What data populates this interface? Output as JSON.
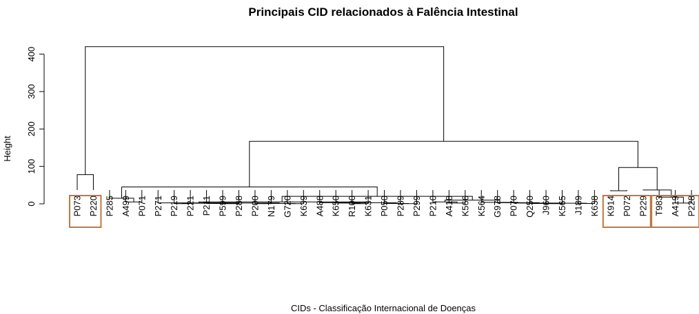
{
  "chart_data": {
    "type": "dendrogram",
    "title": "Principais CID relacionados à Falência Intestinal",
    "xlabel": "CIDs - Classificação Internacional de Doenças",
    "ylabel": "Height",
    "ylim": [
      0,
      420
    ],
    "yticks": [
      0,
      100,
      200,
      300,
      400
    ],
    "leaves": [
      "P073",
      "P220",
      "P285",
      "A499",
      "P071",
      "P271",
      "P219",
      "P221",
      "P211",
      "P599",
      "P288",
      "P200",
      "N179",
      "G720",
      "K639",
      "A488",
      "K650",
      "R100",
      "K631",
      "P050",
      "P289",
      "P299",
      "P210",
      "A418",
      "K566",
      "K564",
      "G978",
      "P070",
      "Q250",
      "J960",
      "K565",
      "J189",
      "K638",
      "K914",
      "P072",
      "P229",
      "T983",
      "A419",
      "P228"
    ],
    "merges": [
      {
        "a": [
          "leaf",
          "P073"
        ],
        "b": [
          "leaf",
          "P220"
        ],
        "height": 78
      },
      {
        "a": [
          "leaf",
          "A499"
        ],
        "b": [
          "leaf",
          "P071"
        ],
        "height": 5
      },
      {
        "a": [
          "leaf",
          "P285"
        ],
        "b": [
          "node",
          1
        ],
        "height": 15
      },
      {
        "a": [
          "leaf",
          "P219"
        ],
        "b": [
          "leaf",
          "P221"
        ],
        "height": 0.5
      },
      {
        "a": [
          "leaf",
          "P599"
        ],
        "b": [
          "leaf",
          "P288"
        ],
        "height": 0.5
      },
      {
        "a": [
          "leaf",
          "P211"
        ],
        "b": [
          "node",
          4
        ],
        "height": 1
      },
      {
        "a": [
          "node",
          3
        ],
        "b": [
          "node",
          5
        ],
        "height": 1.5
      },
      {
        "a": [
          "leaf",
          "P200"
        ],
        "b": [
          "leaf",
          "N179"
        ],
        "height": 0.5
      },
      {
        "a": [
          "leaf",
          "G720"
        ],
        "b": [
          "leaf",
          "K639"
        ],
        "height": 0.5
      },
      {
        "a": [
          "node",
          7
        ],
        "b": [
          "node",
          8
        ],
        "height": 1
      },
      {
        "a": [
          "node",
          6
        ],
        "b": [
          "node",
          9
        ],
        "height": 2
      },
      {
        "a": [
          "leaf",
          "P271"
        ],
        "b": [
          "node",
          10
        ],
        "height": 2.5
      },
      {
        "a": [
          "leaf",
          "R100"
        ],
        "b": [
          "leaf",
          "K631"
        ],
        "height": 0.5
      },
      {
        "a": [
          "leaf",
          "K650"
        ],
        "b": [
          "node",
          12
        ],
        "height": 2
      },
      {
        "a": [
          "leaf",
          "A488"
        ],
        "b": [
          "node",
          13
        ],
        "height": 3
      },
      {
        "a": [
          "leaf",
          "P289"
        ],
        "b": [
          "leaf",
          "P299"
        ],
        "height": 0.5
      },
      {
        "a": [
          "leaf",
          "P050"
        ],
        "b": [
          "node",
          15
        ],
        "height": 1
      },
      {
        "a": [
          "node",
          14
        ],
        "b": [
          "node",
          16
        ],
        "height": 3
      },
      {
        "a": [
          "node",
          11
        ],
        "b": [
          "node",
          17
        ],
        "height": 5
      },
      {
        "a": [
          "leaf",
          "A418"
        ],
        "b": [
          "leaf",
          "K566"
        ],
        "height": 2
      },
      {
        "a": [
          "leaf",
          "P210"
        ],
        "b": [
          "node",
          19
        ],
        "height": 5
      },
      {
        "a": [
          "leaf",
          "J960"
        ],
        "b": [
          "leaf",
          "K565"
        ],
        "height": 0.5
      },
      {
        "a": [
          "leaf",
          "Q250"
        ],
        "b": [
          "node",
          21
        ],
        "height": 1
      },
      {
        "a": [
          "leaf",
          "J189"
        ],
        "b": [
          "leaf",
          "K638"
        ],
        "height": 1
      },
      {
        "a": [
          "node",
          22
        ],
        "b": [
          "node",
          23
        ],
        "height": 1.5
      },
      {
        "a": [
          "leaf",
          "P070"
        ],
        "b": [
          "node",
          24
        ],
        "height": 2
      },
      {
        "a": [
          "leaf",
          "G978"
        ],
        "b": [
          "node",
          25
        ],
        "height": 3
      },
      {
        "a": [
          "leaf",
          "K564"
        ],
        "b": [
          "node",
          26
        ],
        "height": 4
      },
      {
        "a": [
          "node",
          20
        ],
        "b": [
          "node",
          27
        ],
        "height": 10
      },
      {
        "a": [
          "node",
          18
        ],
        "b": [
          "node",
          28
        ],
        "height": 20
      },
      {
        "a": [
          "node",
          2
        ],
        "b": [
          "node",
          29
        ],
        "height": 45
      },
      {
        "a": [
          "leaf",
          "K914"
        ],
        "b": [
          "leaf",
          "P072"
        ],
        "height": 35
      },
      {
        "a": [
          "leaf",
          "A419"
        ],
        "b": [
          "leaf",
          "P228"
        ],
        "height": 2
      },
      {
        "a": [
          "leaf",
          "T983"
        ],
        "b": [
          "node",
          32
        ],
        "height": 18
      },
      {
        "a": [
          "leaf",
          "P229"
        ],
        "b": [
          "node",
          33
        ],
        "height": 37
      },
      {
        "a": [
          "node",
          31
        ],
        "b": [
          "node",
          34
        ],
        "height": 97
      },
      {
        "a": [
          "node",
          30
        ],
        "b": [
          "node",
          35
        ],
        "height": 167
      },
      {
        "a": [
          "node",
          0
        ],
        "b": [
          "node",
          36
        ],
        "height": 420
      }
    ],
    "highlight_boxes": [
      {
        "leaves": [
          "P073",
          "P220"
        ],
        "color": "#c0783c"
      },
      {
        "leaves": [
          "K914",
          "P072",
          "P229"
        ],
        "color": "#c0783c"
      },
      {
        "leaves": [
          "T983",
          "A419",
          "P228"
        ],
        "color": "#c0783c"
      }
    ]
  }
}
